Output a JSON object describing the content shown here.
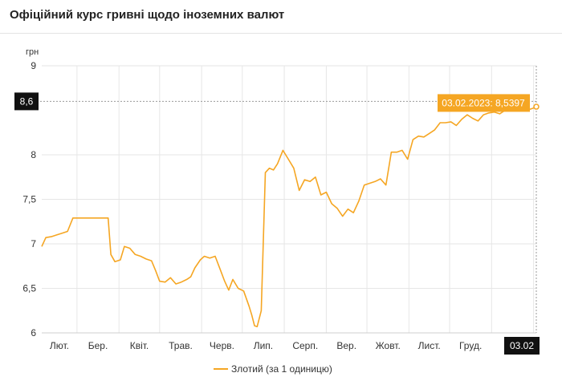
{
  "header": {
    "title": "Офіційний курс гривні щодо іноземних валют"
  },
  "colors": {
    "series": "#f5a623",
    "badge_dark": "#111111",
    "grid": "#e6e6e6"
  },
  "chart_data": {
    "type": "line",
    "title": "Офіційний курс гривні щодо іноземних валют",
    "ylabel": "грн",
    "ylim": [
      6,
      9
    ],
    "yticks": [
      6,
      6.5,
      7,
      7.5,
      8,
      9
    ],
    "xtick_labels": [
      "Лют.",
      "Бер.",
      "Квіт.",
      "Трав.",
      "Черв.",
      "Лип.",
      "Серп.",
      "Вер.",
      "Жовт.",
      "Лист.",
      "Груд."
    ],
    "grid": true,
    "legend_position": "bottom-center",
    "crosshair": {
      "y_label": "8,6",
      "x_label": "03.02",
      "tooltip": "03.02.2023: 8,5397"
    },
    "series": [
      {
        "name": "Злотий (за 1 одиницю)",
        "x": [
          "2022-02-03",
          "2022-02-06",
          "2022-02-10",
          "2022-02-14",
          "2022-02-18",
          "2022-02-22",
          "2022-02-26",
          "2022-03-01",
          "2022-03-06",
          "2022-03-12",
          "2022-03-18",
          "2022-03-24",
          "2022-03-26",
          "2022-03-29",
          "2022-04-02",
          "2022-04-05",
          "2022-04-09",
          "2022-04-13",
          "2022-04-17",
          "2022-04-21",
          "2022-04-25",
          "2022-04-28",
          "2022-05-01",
          "2022-05-05",
          "2022-05-09",
          "2022-05-13",
          "2022-05-17",
          "2022-05-21",
          "2022-05-24",
          "2022-05-27",
          "2022-05-31",
          "2022-06-03",
          "2022-06-07",
          "2022-06-11",
          "2022-06-15",
          "2022-06-18",
          "2022-06-21",
          "2022-06-24",
          "2022-06-28",
          "2022-07-02",
          "2022-07-06",
          "2022-07-08",
          "2022-07-10",
          "2022-07-12",
          "2022-07-15",
          "2022-07-18",
          "2022-07-21",
          "2022-07-24",
          "2022-07-27",
          "2022-07-31",
          "2022-08-04",
          "2022-08-08",
          "2022-08-12",
          "2022-08-16",
          "2022-08-20",
          "2022-08-24",
          "2022-08-28",
          "2022-09-01",
          "2022-09-05",
          "2022-09-09",
          "2022-09-13",
          "2022-09-17",
          "2022-09-21",
          "2022-09-25",
          "2022-09-29",
          "2022-10-03",
          "2022-10-07",
          "2022-10-11",
          "2022-10-15",
          "2022-10-19",
          "2022-10-23",
          "2022-10-27",
          "2022-10-31",
          "2022-11-04",
          "2022-11-08",
          "2022-11-12",
          "2022-11-16",
          "2022-11-20",
          "2022-11-24",
          "2022-11-28",
          "2022-12-02",
          "2022-12-06",
          "2022-12-10",
          "2022-12-14",
          "2022-12-18",
          "2022-12-22",
          "2022-12-26",
          "2022-12-30",
          "2023-01-03",
          "2023-01-07",
          "2023-01-11",
          "2023-01-15",
          "2023-01-19",
          "2023-01-23",
          "2023-01-27",
          "2023-01-31",
          "2023-02-03"
        ],
        "values": [
          6.97,
          7.07,
          7.08,
          7.1,
          7.12,
          7.14,
          7.29,
          7.29,
          7.29,
          7.29,
          7.29,
          7.29,
          6.88,
          6.8,
          6.82,
          6.97,
          6.95,
          6.88,
          6.86,
          6.83,
          6.81,
          6.7,
          6.58,
          6.57,
          6.62,
          6.55,
          6.57,
          6.6,
          6.63,
          6.73,
          6.82,
          6.86,
          6.84,
          6.86,
          6.7,
          6.58,
          6.48,
          6.6,
          6.5,
          6.47,
          6.3,
          6.2,
          6.08,
          6.07,
          6.25,
          7.8,
          7.85,
          7.83,
          7.9,
          8.05,
          7.95,
          7.85,
          7.6,
          7.72,
          7.7,
          7.75,
          7.55,
          7.58,
          7.45,
          7.4,
          7.31,
          7.39,
          7.35,
          7.48,
          7.66,
          7.68,
          7.7,
          7.73,
          7.66,
          8.03,
          8.03,
          8.05,
          7.95,
          8.17,
          8.21,
          8.2,
          8.24,
          8.28,
          8.36,
          8.36,
          8.37,
          8.33,
          8.4,
          8.45,
          8.41,
          8.38,
          8.45,
          8.47,
          8.48,
          8.46,
          8.5,
          8.51,
          8.52,
          8.52,
          8.5,
          8.52,
          8.54
        ]
      }
    ]
  }
}
